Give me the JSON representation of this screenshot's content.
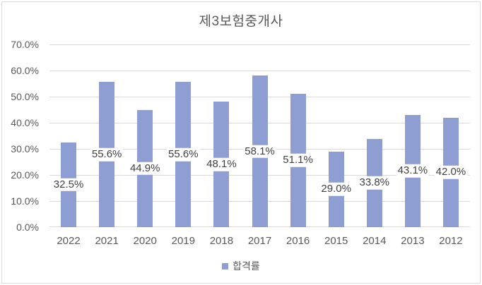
{
  "title": "제3보험중개사",
  "chart_data": {
    "type": "bar",
    "title": "제3보험중개사",
    "categories": [
      "2022",
      "2021",
      "2020",
      "2019",
      "2018",
      "2017",
      "2016",
      "2015",
      "2014",
      "2013",
      "2012"
    ],
    "series": [
      {
        "name": "합격률",
        "values": [
          32.5,
          55.6,
          44.9,
          55.6,
          48.1,
          58.1,
          51.1,
          29.0,
          33.8,
          43.1,
          42.0
        ]
      }
    ],
    "data_labels": [
      "32.5%",
      "55.6%",
      "44.9%",
      "55.6%",
      "48.1%",
      "58.1%",
      "51.1%",
      "29.0%",
      "33.8%",
      "43.1%",
      "42.0%"
    ],
    "xlabel": "",
    "ylabel": "",
    "ylim": [
      0,
      70
    ],
    "ytick_step": 10,
    "yticks": [
      "70.0%",
      "60.0%",
      "50.0%",
      "40.0%",
      "30.0%",
      "20.0%",
      "10.0%",
      "0.0%"
    ],
    "grid": true,
    "legend_position": "bottom"
  },
  "legend": {
    "label": "합격률"
  },
  "colors": {
    "bar": "#8E9ED3",
    "grid": "#D9D9D9",
    "axis_text": "#595959",
    "data_label_text": "#404040",
    "title_text": "#595959",
    "border": "#D9D9D9",
    "background": "#FFFFFF"
  }
}
